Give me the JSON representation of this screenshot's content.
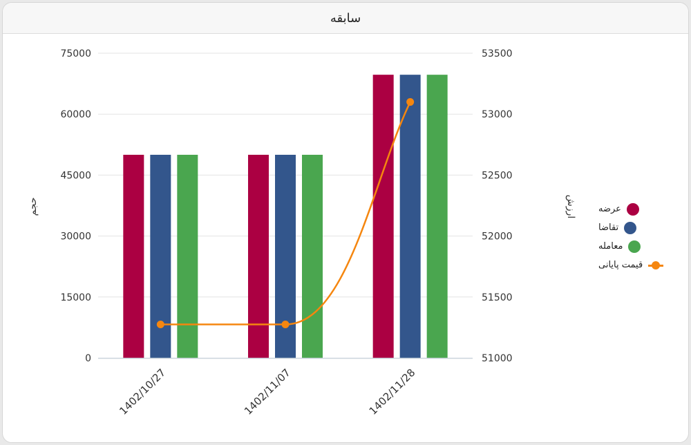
{
  "card": {
    "title": "سابقه"
  },
  "chart_data": {
    "type": "bar",
    "title": "سابقه",
    "categories": [
      "1402/10/27",
      "1402/11/07",
      "1402/11/28"
    ],
    "series": [
      {
        "name": "عرضه",
        "type": "bar",
        "axis": "left",
        "color": "#ab0042",
        "values": [
          50000,
          50000,
          69700
        ]
      },
      {
        "name": "تقاضا",
        "type": "bar",
        "axis": "left",
        "color": "#33568c",
        "values": [
          50000,
          50000,
          69700
        ]
      },
      {
        "name": "معامله",
        "type": "bar",
        "axis": "left",
        "color": "#4aa64f",
        "values": [
          50000,
          50000,
          69700
        ]
      },
      {
        "name": "قیمت پایانی",
        "type": "line",
        "axis": "right",
        "color": "#f5860f",
        "values": [
          51275,
          51275,
          53100
        ]
      }
    ],
    "ylabel_left": "حجم",
    "ylabel_right": "ارزش",
    "ylim_left": [
      0,
      75000
    ],
    "ylim_right": [
      51000,
      53500
    ],
    "yticks_left": [
      0,
      15000,
      30000,
      45000,
      60000,
      75000
    ],
    "yticks_right": [
      51000,
      51500,
      52000,
      52500,
      53000,
      53500
    ],
    "grid": true,
    "legend_position": "right"
  }
}
